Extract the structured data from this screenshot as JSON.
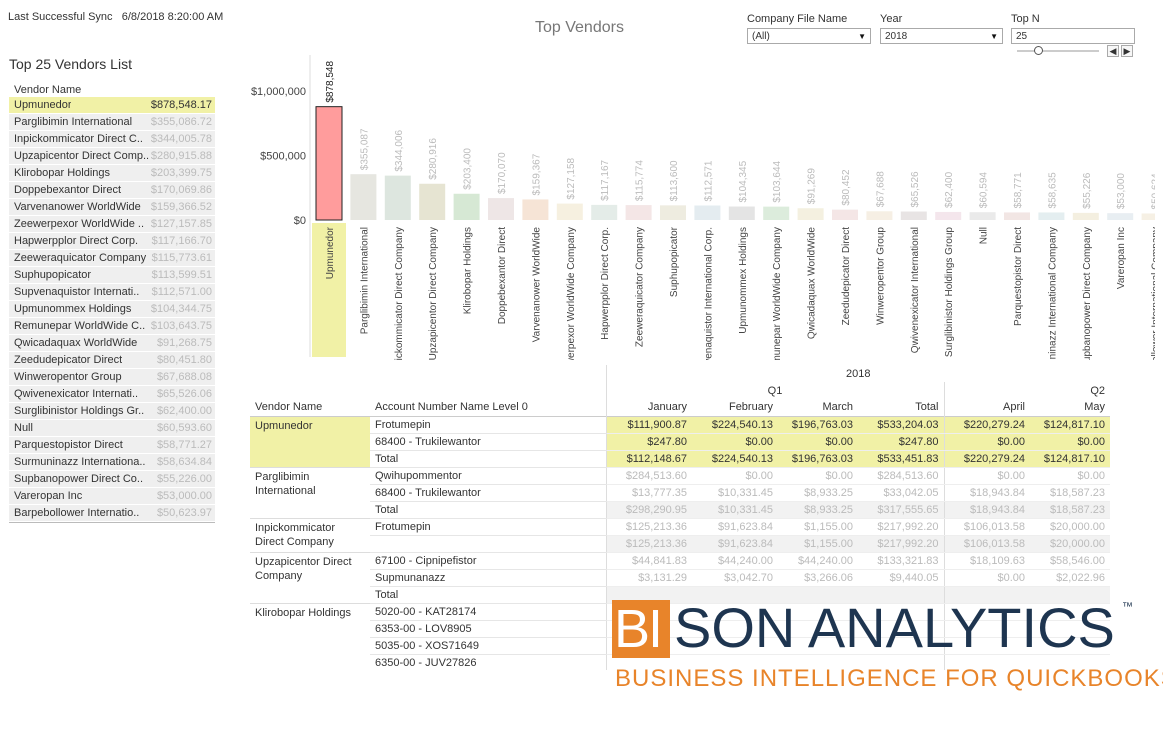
{
  "sync": {
    "label": "Last Successful Sync",
    "value": "6/8/2018 8:20:00 AM"
  },
  "list": {
    "title": "Top 25 Vendors List",
    "header": "Vendor Name",
    "rows": [
      {
        "name": "Upmunedor",
        "value": "$878,548.17",
        "selected": true
      },
      {
        "name": "Parglibimin International",
        "value": "$355,086.72"
      },
      {
        "name": "Inpickommicator Direct C..",
        "value": "$344,005.78"
      },
      {
        "name": "Upzapicentor Direct Comp..",
        "value": "$280,915.88"
      },
      {
        "name": "Klirobopar Holdings",
        "value": "$203,399.75"
      },
      {
        "name": "Doppebexantor Direct",
        "value": "$170,069.86"
      },
      {
        "name": "Varvenanower WorldWide",
        "value": "$159,366.52"
      },
      {
        "name": "Zeewerpexor WorldWide ..",
        "value": "$127,157.85"
      },
      {
        "name": "Hapwerpplor Direct Corp.",
        "value": "$117,166.70"
      },
      {
        "name": "Zeeweraquicator  Company",
        "value": "$115,773.61"
      },
      {
        "name": "Suphupopicator",
        "value": "$113,599.51"
      },
      {
        "name": "Supvenaquistor Internati..",
        "value": "$112,571.00"
      },
      {
        "name": "Upmunommex Holdings",
        "value": "$104,344.75"
      },
      {
        "name": "Remunepar WorldWide C..",
        "value": "$103,643.75"
      },
      {
        "name": "Qwicadaquax WorldWide",
        "value": "$91,268.75"
      },
      {
        "name": "Zeedudepicator Direct",
        "value": "$80,451.80"
      },
      {
        "name": "Winweropentor  Group",
        "value": "$67,688.08"
      },
      {
        "name": "Qwivenexicator Internati..",
        "value": "$65,526.06"
      },
      {
        "name": "Surglibinistor Holdings Gr..",
        "value": "$62,400.00"
      },
      {
        "name": "Null",
        "value": "$60,593.60"
      },
      {
        "name": "Parquestopistor Direct",
        "value": "$58,771.27"
      },
      {
        "name": "Surmuninazz Internationa..",
        "value": "$58,634.84"
      },
      {
        "name": "Supbanopower Direct Co..",
        "value": "$55,226.00"
      },
      {
        "name": "Vareropan  Inc",
        "value": "$53,000.00"
      },
      {
        "name": "Barpebollower Internatio..",
        "value": "$50,623.97"
      }
    ]
  },
  "filters": {
    "company": {
      "label": "Company File Name",
      "value": "(All)"
    },
    "year": {
      "label": "Year",
      "value": "2018"
    },
    "topn": {
      "label": "Top N",
      "value": "25",
      "slider_fraction": 0.25
    },
    "prev_icon": "chevron-left-icon",
    "next_icon": "chevron-right-icon"
  },
  "chart_data": {
    "type": "bar",
    "title": "Top Vendors",
    "ylim": [
      0,
      1000000
    ],
    "yticks": [
      "$0",
      "$500,000",
      "$1,000,000"
    ],
    "ytick_values": [
      0,
      500000,
      1000000
    ],
    "categories": [
      "Upmunedor",
      "Parglibimin International",
      "Inpickommicator Direct Company",
      "Upzapicentor Direct Company",
      "Klirobopar Holdings",
      "Doppebexantor Direct",
      "Varvenanower WorldWide",
      "Zeewerpexor WorldWide Company",
      "Hapwerpplor Direct Corp.",
      "Zeeweraquicator  Company",
      "Suphupopicator",
      "Supvenaquistor International Corp.",
      "Upmunommex Holdings",
      "Remunepar WorldWide Company",
      "Qwicadaquax WorldWide",
      "Zeedudepicator Direct",
      "Winweropentor Group",
      "Qwivenexicator International",
      "Surglibinistor Holdings Group",
      "Null",
      "Parquestopistor Direct",
      "Surmuninazz International Company",
      "Supbanopower Direct Company",
      "Vareropan Inc",
      "Barpebollower International Company"
    ],
    "values": [
      878548,
      355087,
      344006,
      280916,
      203400,
      170070,
      159367,
      127158,
      117167,
      115774,
      113600,
      112571,
      104345,
      103644,
      91269,
      80452,
      67688,
      65526,
      62400,
      60594,
      58771,
      58635,
      55226,
      53000,
      50624
    ],
    "labels": [
      "$878,548",
      "$355,087",
      "$344,006",
      "$280,916",
      "$203,400",
      "$170,070",
      "$159,367",
      "$127,158",
      "$117,167",
      "$115,774",
      "$113,600",
      "$112,571",
      "$104,345",
      "$103,644",
      "$91,269",
      "$80,452",
      "$67,688",
      "$65,526",
      "$62,400",
      "$60,594",
      "$58,771",
      "$58,635",
      "$55,226",
      "$53,000",
      "$50,624"
    ],
    "colors": [
      "#ff9c9c",
      "#e6e6e0",
      "#dde6df",
      "#e6e4d2",
      "#d6e8d4",
      "#eee6e6",
      "#f6e4d6",
      "#f6f0e0",
      "#e4ece8",
      "#f4e6e6",
      "#eeece0",
      "#e4ecf0",
      "#e4e4e4",
      "#dcecdc",
      "#f4f0e0",
      "#f4e6e6",
      "#f6efe4",
      "#e8e4e4",
      "#f4e6ec",
      "#eaeaea",
      "#f2e6e4",
      "#e4eef0",
      "#f4efe0",
      "#e8eef2",
      "#f6f0e4"
    ],
    "selected_index": 0,
    "highlight_color": "#f1f1a6"
  },
  "table": {
    "year": "2018",
    "quarters": [
      "Q1",
      "Q2"
    ],
    "headers": [
      "Vendor Name",
      "Account Number Name Level 0",
      "January",
      "February",
      "March",
      "Total",
      "April",
      "May"
    ],
    "groups": [
      {
        "vendor": "Upmunedor",
        "highlight": true,
        "rows": [
          {
            "account": "Frotumepin",
            "vals": [
              "$111,900.87",
              "$224,540.13",
              "$196,763.03",
              "$533,204.03",
              "$220,279.24",
              "$124,817.10"
            ]
          },
          {
            "account": "68400 - Trukilewantor",
            "vals": [
              "$247.80",
              "$0.00",
              "$0.00",
              "$247.80",
              "$0.00",
              "$0.00"
            ]
          },
          {
            "account": "Total",
            "vals": [
              "$112,148.67",
              "$224,540.13",
              "$196,763.03",
              "$533,451.83",
              "$220,279.24",
              "$124,817.10"
            ]
          }
        ]
      },
      {
        "vendor": "Parglibimin International",
        "rows": [
          {
            "account": "Qwihupommentor",
            "vals": [
              "$284,513.60",
              "$0.00",
              "$0.00",
              "$284,513.60",
              "$0.00",
              "$0.00"
            ]
          },
          {
            "account": "68400 - Trukilewantor",
            "vals": [
              "$13,777.35",
              "$10,331.45",
              "$8,933.25",
              "$33,042.05",
              "$18,943.84",
              "$18,587.23"
            ]
          },
          {
            "account": "Total",
            "vals": [
              "$298,290.95",
              "$10,331.45",
              "$8,933.25",
              "$317,555.65",
              "$18,943.84",
              "$18,587.23"
            ]
          }
        ]
      },
      {
        "vendor": "Inpickommicator Direct Company",
        "rows": [
          {
            "account": "Frotumepin",
            "vals": [
              "$125,213.36",
              "$91,623.84",
              "$1,155.00",
              "$217,992.20",
              "$106,013.58",
              "$20,000.00"
            ]
          },
          {
            "account": "",
            "vals": [
              "$125,213.36",
              "$91,623.84",
              "$1,155.00",
              "$217,992.20",
              "$106,013.58",
              "$20,000.00"
            ]
          }
        ]
      },
      {
        "vendor": "Upzapicentor Direct Company",
        "rows": [
          {
            "account": "67100 - Cipnipefistor",
            "vals": [
              "$44,841.83",
              "$44,240.00",
              "$44,240.00",
              "$133,321.83",
              "$18,109.63",
              "$58,546.00"
            ]
          },
          {
            "account": "Supmunanazz",
            "vals": [
              "$3,131.29",
              "$3,042.70",
              "$3,266.06",
              "$9,440.05",
              "$0.00",
              "$2,022.96"
            ]
          },
          {
            "account": "Total",
            "vals": [
              "",
              "",
              "",
              "",
              "",
              ""
            ]
          }
        ]
      },
      {
        "vendor": "Klirobopar Holdings",
        "rows": [
          {
            "account": "5020-00 - KAT28174",
            "vals": [
              "",
              "",
              "",
              "",
              "",
              ""
            ]
          },
          {
            "account": "6353-00 - LOV8905",
            "vals": [
              "",
              "",
              "",
              "",
              "",
              ""
            ]
          },
          {
            "account": "5035-00 - XOS71649",
            "vals": [
              "",
              "",
              "",
              "",
              "",
              ""
            ]
          },
          {
            "account": "6350-00 - JUV27826",
            "vals": [
              "",
              "",
              "",
              "",
              "",
              ""
            ]
          }
        ]
      }
    ]
  },
  "logo": {
    "bi": "BI",
    "rest": "SON ANALYTICS",
    "tm": "™",
    "tagline": "BUSINESS INTELLIGENCE FOR QUICKBOOKS",
    "orange": "#e8842a",
    "navy": "#1e3550"
  }
}
